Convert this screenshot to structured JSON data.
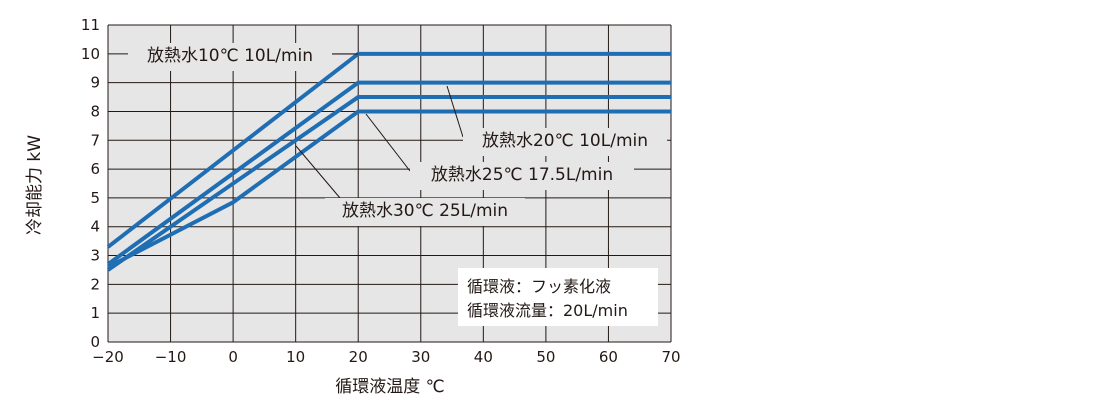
{
  "chart_data": {
    "type": "line",
    "xlabel": "循環液温度 ℃",
    "ylabel": "冷却能力 kW",
    "xlim": [
      -20,
      70
    ],
    "ylim": [
      0,
      11
    ],
    "xticks": [
      "−20",
      "−10",
      "0",
      "10",
      "20",
      "30",
      "40",
      "50",
      "60",
      "70"
    ],
    "yticks": [
      "0",
      "1",
      "2",
      "3",
      "4",
      "5",
      "6",
      "7",
      "8",
      "9",
      "10",
      "11"
    ],
    "grid": true,
    "series": [
      {
        "name": "放熱水10℃ 10L/min",
        "x": [
          -20,
          20,
          70
        ],
        "y": [
          3.3,
          10,
          10
        ]
      },
      {
        "name": "放熱水20℃ 10L/min",
        "x": [
          -20,
          20,
          70
        ],
        "y": [
          2.7,
          9,
          9
        ]
      },
      {
        "name": "放熱水25℃ 17.5L/min",
        "x": [
          -20,
          20,
          70
        ],
        "y": [
          2.5,
          8.5,
          8.5
        ]
      },
      {
        "name": "放熱水30℃ 25L/min",
        "x": [
          -20,
          0,
          20,
          70
        ],
        "y": [
          2.6,
          4.85,
          8,
          8
        ]
      }
    ],
    "note": [
      "循環液：フッ素化液",
      "循環液流量：20L/min"
    ],
    "line_color": "#1f6eb4"
  }
}
